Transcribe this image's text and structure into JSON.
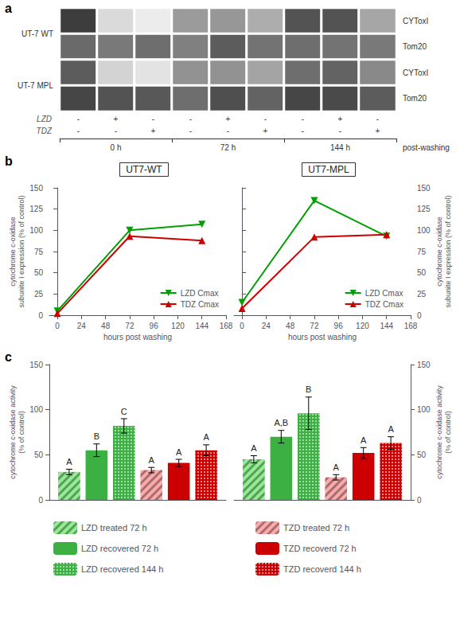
{
  "chart_data": [
    {
      "type": "heatmap",
      "panel_label": "a",
      "rows": [
        "CYToxI",
        "Tom20",
        "CYToxI",
        "Tom20"
      ],
      "row_groups": [
        "UT-7 WT",
        "UT-7 MPL"
      ],
      "lane_rows": [
        {
          "name": "LZD",
          "labels": [
            "-",
            "+",
            "-",
            "-",
            "+",
            "-",
            "-",
            "+",
            "-"
          ]
        },
        {
          "name": "TDZ",
          "labels": [
            "-",
            "-",
            "+",
            "-",
            "-",
            "+",
            "-",
            "-",
            "+"
          ]
        }
      ],
      "lane_groups": [
        "0 h",
        "72 h",
        "144 h"
      ],
      "lane_groups_label": "post-washing",
      "values": [
        [
          0.82,
          0.12,
          0.04,
          0.4,
          0.42,
          0.32,
          0.72,
          0.72,
          0.35
        ],
        [
          0.62,
          0.55,
          0.6,
          0.52,
          0.68,
          0.58,
          0.6,
          0.58,
          0.55
        ],
        [
          0.68,
          0.15,
          0.08,
          0.44,
          0.44,
          0.36,
          0.6,
          0.65,
          0.48
        ],
        [
          0.78,
          0.72,
          0.7,
          0.6,
          0.74,
          0.65,
          0.78,
          0.76,
          0.68
        ]
      ],
      "color_range": [
        0,
        1
      ]
    },
    {
      "type": "line",
      "panel_label": "b",
      "title": "UT7-WT",
      "x": [
        0,
        72,
        144
      ],
      "xlim": [
        -8,
        168
      ],
      "xticks": [
        0,
        24,
        48,
        72,
        96,
        120,
        144,
        168
      ],
      "ylim": [
        0,
        150
      ],
      "yticks": [
        0,
        25,
        50,
        75,
        100,
        125,
        150
      ],
      "xlabel": "hours post washing",
      "ylabel": "cytochrome c-oxidase\nsubunite I expression (% of control)",
      "grid": false,
      "legend": "lower right",
      "series": [
        {
          "name": "LZD Cmax",
          "color": "#00a000",
          "marker": "triangle_down",
          "values": [
            5,
            100,
            107
          ]
        },
        {
          "name": "TDZ Cmax",
          "color": "#cc0000",
          "marker": "triangle_up",
          "values": [
            2,
            93,
            88
          ]
        }
      ]
    },
    {
      "type": "line",
      "title": "UT7-MPL",
      "x": [
        0,
        72,
        144
      ],
      "xlim": [
        -8,
        168
      ],
      "xticks": [
        0,
        24,
        48,
        72,
        96,
        120,
        144,
        168
      ],
      "ylim": [
        0,
        150
      ],
      "yticks": [
        0,
        25,
        50,
        75,
        100,
        125,
        150
      ],
      "xlabel": "hours post washing",
      "ylabel": "cytochrome c-oxidase\nsubunite I expression (% of control)",
      "grid": false,
      "legend": "lower right",
      "series": [
        {
          "name": "LZD Cmax",
          "color": "#00a000",
          "marker": "triangle_down",
          "values": [
            15,
            135,
            93
          ]
        },
        {
          "name": "TDZ Cmax",
          "color": "#cc0000",
          "marker": "triangle_up",
          "values": [
            8,
            92,
            95
          ]
        }
      ]
    },
    {
      "type": "bar",
      "panel_label": "c",
      "categories": [
        null
      ],
      "tick_labels": "y",
      "ylim": [
        0,
        150
      ],
      "yticks": [
        0,
        50,
        100,
        150
      ],
      "ylabel": "cytochrome c-oxidase activity\n(% of control)",
      "grid": false,
      "legend": "bottom",
      "series": [
        {
          "name": "LZD treated 72 h",
          "color": "#90ee90",
          "values": [
            31
          ],
          "errors": [
            3
          ],
          "annotations": [
            "A"
          ]
        },
        {
          "name": "LZD recovered 72 h",
          "color": "#3cb043",
          "values": [
            55
          ],
          "errors": [
            7
          ],
          "annotations": [
            "B"
          ]
        },
        {
          "name": "LZD recovered 144 h",
          "color": "#3cb043",
          "values": [
            82
          ],
          "errors": [
            8
          ],
          "annotations": [
            "C"
          ]
        },
        {
          "name": "TZD treated 72 h",
          "color": "#ffaaaa",
          "values": [
            33
          ],
          "errors": [
            3
          ],
          "annotations": [
            "A"
          ]
        },
        {
          "name": "TZD recoverd 72 h",
          "color": "#cc0000",
          "values": [
            41
          ],
          "errors": [
            4
          ],
          "annotations": [
            "A"
          ]
        },
        {
          "name": "TZD recoverd 144 h",
          "color": "#cc0000",
          "values": [
            55
          ],
          "errors": [
            6
          ],
          "annotations": [
            "A"
          ]
        }
      ]
    },
    {
      "type": "bar",
      "categories": [
        null
      ],
      "tick_labels": "y",
      "ylim": [
        0,
        150
      ],
      "yticks": [
        0,
        50,
        100,
        150
      ],
      "ylabel": "cytochrome c-oxidase activity\n(% of control)",
      "grid": false,
      "series": [
        {
          "name": "LZD treated 72 h",
          "color": "#90ee90",
          "values": [
            45
          ],
          "errors": [
            4
          ],
          "annotations": [
            "A"
          ]
        },
        {
          "name": "LZD recovered 72 h",
          "color": "#3cb043",
          "values": [
            70
          ],
          "errors": [
            7
          ],
          "annotations": [
            "A,B"
          ]
        },
        {
          "name": "LZD recovered 144 h",
          "color": "#3cb043",
          "values": [
            96
          ],
          "errors": [
            18
          ],
          "annotations": [
            "B"
          ]
        },
        {
          "name": "TZD treated 72 h",
          "color": "#ffaaaa",
          "values": [
            25
          ],
          "errors": [
            3
          ],
          "annotations": [
            "A"
          ]
        },
        {
          "name": "TZD recoverd 72 h",
          "color": "#cc0000",
          "values": [
            52
          ],
          "errors": [
            6
          ],
          "annotations": [
            "A"
          ]
        },
        {
          "name": "TZD recoverd 144 h",
          "color": "#cc0000",
          "values": [
            63
          ],
          "errors": [
            7
          ],
          "annotations": [
            "A"
          ]
        }
      ]
    }
  ]
}
